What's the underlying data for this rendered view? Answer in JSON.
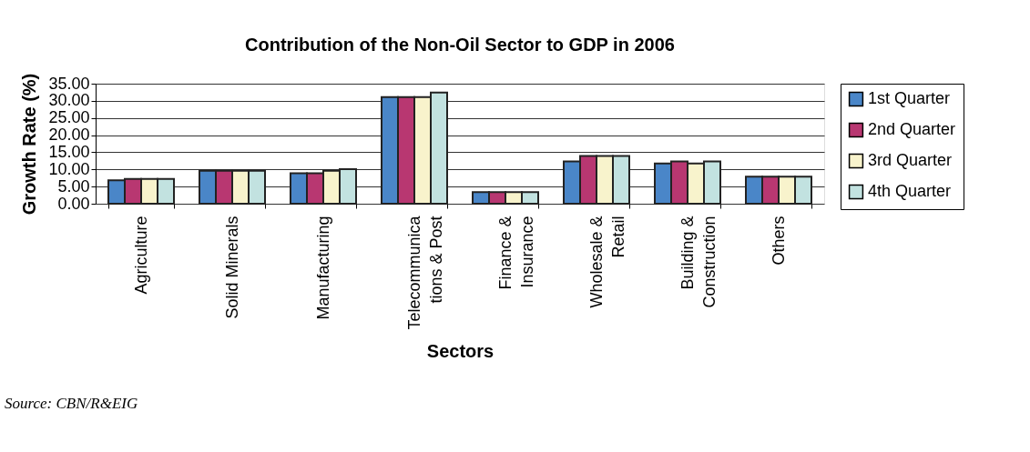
{
  "chart_data": {
    "type": "bar",
    "title": "Contribution of the Non-Oil Sector to GDP in 2006",
    "xlabel": "Sectors",
    "ylabel": "Growth Rate (%)",
    "categories": [
      "Agriculture",
      "Solid Minerals",
      "Manufacturing",
      "Telecommunica\ntions & Post",
      "Finance &\nInsurance",
      "Wholesale &\nRetail",
      "Building &\nConstruction",
      "Others"
    ],
    "series": [
      {
        "name": "1st Quarter",
        "color": "#4a86c8",
        "values": [
          6.8,
          9.6,
          8.9,
          31.1,
          3.4,
          12.3,
          11.7,
          7.9
        ]
      },
      {
        "name": "2nd Quarter",
        "color": "#b83771",
        "values": [
          7.2,
          9.6,
          8.9,
          31.1,
          3.4,
          13.9,
          12.3,
          7.9
        ]
      },
      {
        "name": "3rd Quarter",
        "color": "#f8f3cc",
        "values": [
          7.2,
          9.6,
          9.6,
          31.1,
          3.4,
          13.9,
          11.7,
          7.9
        ]
      },
      {
        "name": "4th Quarter",
        "color": "#c2e2e0",
        "values": [
          7.2,
          9.6,
          10.1,
          32.4,
          3.4,
          13.9,
          12.3,
          7.9
        ]
      }
    ],
    "ylim": [
      0,
      35
    ],
    "yticks": [
      {
        "value": 0,
        "label": "0.00"
      },
      {
        "value": 5,
        "label": "5.00"
      },
      {
        "value": 10,
        "label": "10.00"
      },
      {
        "value": 15,
        "label": "15.00"
      },
      {
        "value": 20,
        "label": "20.00"
      },
      {
        "value": 25,
        "label": "25.00"
      },
      {
        "value": 30,
        "label": "30.00"
      },
      {
        "value": 35,
        "label": "35.00"
      }
    ],
    "grid": "y",
    "legend": "right",
    "annotations": [
      "Source:  CBN/R&EIG"
    ]
  }
}
